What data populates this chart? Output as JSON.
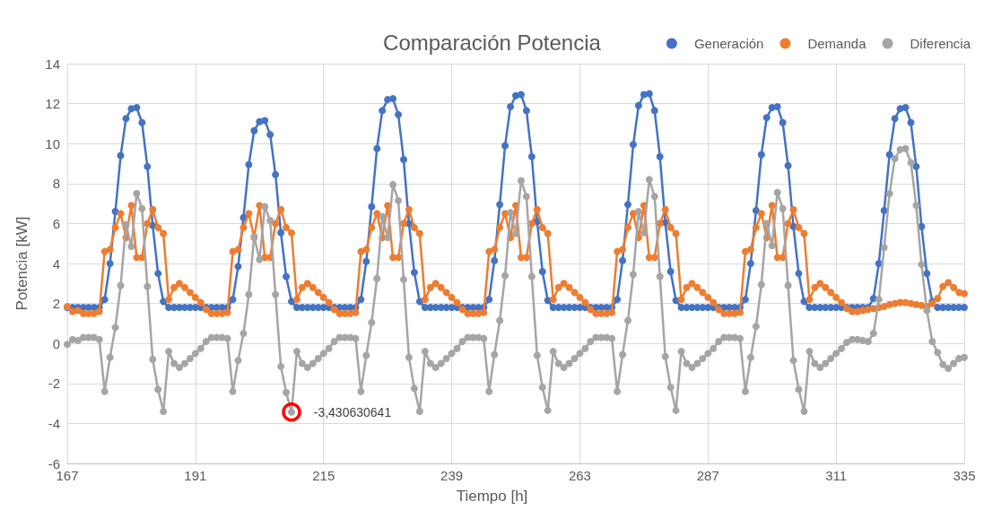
{
  "chart_data": {
    "type": "line",
    "title": "Comparación Potencia",
    "xlabel": "Tiempo [h]",
    "ylabel": "Potencia [kW]",
    "x": [
      167,
      168,
      169,
      170,
      171,
      172,
      173,
      174,
      175,
      176,
      177,
      178,
      179,
      180,
      181,
      182,
      183,
      184,
      185,
      186,
      187,
      188,
      189,
      190,
      191,
      192,
      193,
      194,
      195,
      196,
      197,
      198,
      199,
      200,
      201,
      202,
      203,
      204,
      205,
      206,
      207,
      208,
      209,
      210,
      211,
      212,
      213,
      214,
      215,
      216,
      217,
      218,
      219,
      220,
      221,
      222,
      223,
      224,
      225,
      226,
      227,
      228,
      229,
      230,
      231,
      232,
      233,
      234,
      235,
      236,
      237,
      238,
      239,
      240,
      241,
      242,
      243,
      244,
      245,
      246,
      247,
      248,
      249,
      250,
      251,
      252,
      253,
      254,
      255,
      256,
      257,
      258,
      259,
      260,
      261,
      262,
      263,
      264,
      265,
      266,
      267,
      268,
      269,
      270,
      271,
      272,
      273,
      274,
      275,
      276,
      277,
      278,
      279,
      280,
      281,
      282,
      283,
      284,
      285,
      286,
      287,
      288,
      289,
      290,
      291,
      292,
      293,
      294,
      295,
      296,
      297,
      298,
      299,
      300,
      301,
      302,
      303,
      304,
      305,
      306,
      307,
      308,
      309,
      310,
      311,
      312,
      313,
      314,
      315,
      316,
      317,
      318,
      319,
      320,
      321,
      322,
      323,
      324,
      325,
      326,
      327,
      328,
      329,
      330,
      331,
      332,
      333,
      334,
      335
    ],
    "series": [
      {
        "name": "Generación",
        "color": "#4472c4",
        "values": [
          1.8,
          1.8,
          1.8,
          1.8,
          1.8,
          1.8,
          1.8,
          2.2,
          4.0,
          6.6,
          9.4,
          11.25,
          11.75,
          11.8,
          11.05,
          8.85,
          5.9,
          3.5,
          2.1,
          1.8,
          1.8,
          1.8,
          1.8,
          1.8,
          1.8,
          1.8,
          1.8,
          1.8,
          1.8,
          1.8,
          1.8,
          2.2,
          3.85,
          6.3,
          8.95,
          10.65,
          11.1,
          11.15,
          10.45,
          8.45,
          5.55,
          3.35,
          2.1,
          1.8,
          1.8,
          1.8,
          1.8,
          1.8,
          1.8,
          1.8,
          1.8,
          1.8,
          1.8,
          1.8,
          1.8,
          2.2,
          4.1,
          6.85,
          9.75,
          11.65,
          12.2,
          12.25,
          11.45,
          9.2,
          6.0,
          3.55,
          2.1,
          1.8,
          1.8,
          1.8,
          1.8,
          1.8,
          1.8,
          1.8,
          1.8,
          1.8,
          1.8,
          1.8,
          1.8,
          2.2,
          4.15,
          6.95,
          9.9,
          11.85,
          12.4,
          12.45,
          11.65,
          9.35,
          6.1,
          3.6,
          2.15,
          1.8,
          1.8,
          1.8,
          1.8,
          1.8,
          1.8,
          1.8,
          1.8,
          1.8,
          1.8,
          1.8,
          1.8,
          2.2,
          4.15,
          6.95,
          9.95,
          11.9,
          12.45,
          12.5,
          11.65,
          9.35,
          6.05,
          3.6,
          2.15,
          1.8,
          1.8,
          1.8,
          1.8,
          1.8,
          1.8,
          1.8,
          1.8,
          1.8,
          1.8,
          1.8,
          1.8,
          2.2,
          4.0,
          6.65,
          9.45,
          11.3,
          11.8,
          11.85,
          11.05,
          8.9,
          5.85,
          3.5,
          2.1,
          1.8,
          1.8,
          1.8,
          1.8,
          1.8,
          1.8,
          1.8,
          1.8,
          1.8,
          1.8,
          1.8,
          1.8,
          2.25,
          4.0,
          6.65,
          9.45,
          11.25,
          11.75,
          11.8,
          11.05,
          8.85,
          5.85,
          3.5,
          2.1,
          1.8,
          1.8,
          1.8,
          1.8,
          1.8,
          1.8
        ]
      },
      {
        "name": "Demanda",
        "color": "#ed7d31",
        "values": [
          1.85,
          1.6,
          1.65,
          1.5,
          1.5,
          1.5,
          1.6,
          4.6,
          4.7,
          5.8,
          6.5,
          5.3,
          6.9,
          4.3,
          4.3,
          6.0,
          6.7,
          5.8,
          5.5,
          2.2,
          2.8,
          3.0,
          2.8,
          2.55,
          2.3,
          2.05,
          1.7,
          1.5,
          1.5,
          1.5,
          1.55,
          4.6,
          4.7,
          5.8,
          6.5,
          5.3,
          6.9,
          4.3,
          4.3,
          6.0,
          6.7,
          5.8,
          5.53,
          2.2,
          2.8,
          3.0,
          2.8,
          2.55,
          2.3,
          2.05,
          1.7,
          1.5,
          1.5,
          1.5,
          1.55,
          4.6,
          4.7,
          5.8,
          6.5,
          5.3,
          6.9,
          4.3,
          4.3,
          6.0,
          6.7,
          5.8,
          5.5,
          2.2,
          2.8,
          3.0,
          2.8,
          2.55,
          2.3,
          2.05,
          1.7,
          1.5,
          1.5,
          1.5,
          1.55,
          4.6,
          4.7,
          5.8,
          6.5,
          5.3,
          6.9,
          4.3,
          4.3,
          6.0,
          6.7,
          5.8,
          5.5,
          2.2,
          2.8,
          3.0,
          2.8,
          2.55,
          2.3,
          2.05,
          1.7,
          1.5,
          1.5,
          1.5,
          1.55,
          4.6,
          4.7,
          5.8,
          6.5,
          5.3,
          6.9,
          4.3,
          4.3,
          6.0,
          6.7,
          5.8,
          5.5,
          2.2,
          2.8,
          3.0,
          2.8,
          2.55,
          2.3,
          2.05,
          1.7,
          1.5,
          1.5,
          1.5,
          1.55,
          4.6,
          4.7,
          5.8,
          6.5,
          5.3,
          6.9,
          4.3,
          4.3,
          6.0,
          6.7,
          5.8,
          5.5,
          2.2,
          2.8,
          3.0,
          2.8,
          2.55,
          2.3,
          2.05,
          1.75,
          1.6,
          1.6,
          1.65,
          1.7,
          1.75,
          1.8,
          1.85,
          1.95,
          2.0,
          2.05,
          2.05,
          2.0,
          1.95,
          1.9,
          1.85,
          2.0,
          2.25,
          2.85,
          3.05,
          2.8,
          2.55,
          2.5
        ]
      },
      {
        "name": "Diferencia",
        "color": "#a5a5a5",
        "values": [
          -0.05,
          0.2,
          0.15,
          0.3,
          0.3,
          0.3,
          0.2,
          -2.4,
          -0.7,
          0.8,
          2.9,
          5.95,
          4.85,
          7.5,
          6.75,
          2.85,
          -0.8,
          -2.3,
          -3.4,
          -0.4,
          -1.0,
          -1.2,
          -1.0,
          -0.75,
          -0.5,
          -0.25,
          0.1,
          0.3,
          0.3,
          0.3,
          0.25,
          -2.4,
          -0.85,
          0.5,
          2.45,
          5.35,
          4.2,
          6.85,
          6.15,
          2.45,
          -1.15,
          -2.45,
          -3.430630641,
          -0.4,
          -1.0,
          -1.2,
          -1.0,
          -0.75,
          -0.5,
          -0.25,
          0.1,
          0.3,
          0.3,
          0.3,
          0.25,
          -2.4,
          -0.6,
          1.05,
          3.25,
          6.35,
          5.3,
          7.95,
          7.15,
          3.2,
          -0.7,
          -2.25,
          -3.4,
          -0.4,
          -1.0,
          -1.2,
          -1.0,
          -0.75,
          -0.5,
          -0.25,
          0.1,
          0.3,
          0.3,
          0.3,
          0.25,
          -2.4,
          -0.55,
          1.15,
          3.4,
          6.55,
          5.5,
          8.15,
          7.35,
          3.35,
          -0.6,
          -2.2,
          -3.35,
          -0.4,
          -1.0,
          -1.2,
          -1.0,
          -0.75,
          -0.5,
          -0.25,
          0.1,
          0.3,
          0.3,
          0.3,
          0.25,
          -2.4,
          -0.55,
          1.15,
          3.45,
          6.6,
          5.55,
          8.2,
          7.35,
          3.35,
          -0.65,
          -2.2,
          -3.35,
          -0.4,
          -1.0,
          -1.2,
          -1.0,
          -0.75,
          -0.5,
          -0.25,
          0.1,
          0.3,
          0.3,
          0.3,
          0.25,
          -2.4,
          -0.7,
          0.85,
          2.95,
          6.0,
          4.9,
          7.55,
          6.75,
          2.9,
          -0.85,
          -2.3,
          -3.4,
          -0.4,
          -1.0,
          -1.2,
          -1.0,
          -0.75,
          -0.5,
          -0.25,
          0.05,
          0.2,
          0.2,
          0.15,
          0.1,
          0.5,
          2.2,
          4.8,
          7.5,
          9.25,
          9.7,
          9.75,
          9.05,
          6.9,
          3.95,
          1.65,
          0.1,
          -0.45,
          -1.05,
          -1.25,
          -1.0,
          -0.75,
          -0.7
        ]
      }
    ],
    "xlim": [
      167,
      335
    ],
    "xticks": [
      167,
      191,
      215,
      239,
      263,
      287,
      311,
      335
    ],
    "ylim": [
      -6,
      14
    ],
    "yticks": [
      -6,
      -4,
      -2,
      0,
      2,
      4,
      6,
      8,
      10,
      12,
      14
    ],
    "grid": true,
    "legend": "top right",
    "marker": "circle",
    "annotations": [
      {
        "text": "-3,430630641",
        "x": 209,
        "y": -3.430630641
      }
    ]
  }
}
